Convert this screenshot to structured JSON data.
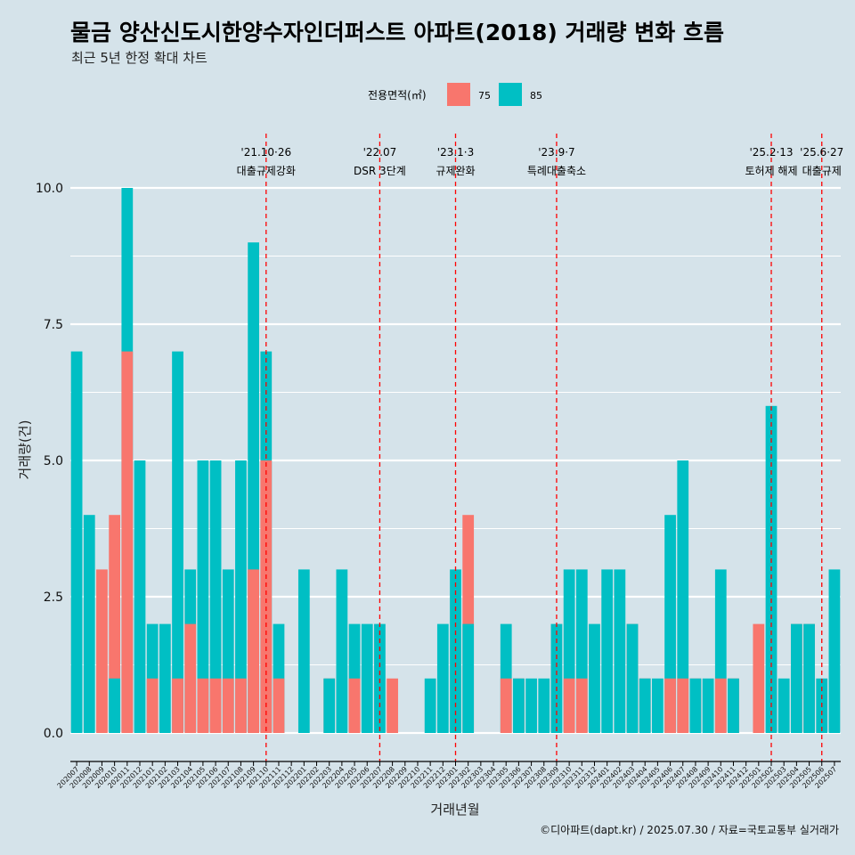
{
  "chart_data": {
    "type": "bar",
    "stacked": false,
    "title": "물금 양산신도시한양수자인더퍼스트 아파트(2018) 거래량 변화 흐름",
    "subtitle": "최근 5년 한정 확대 차트",
    "xlabel": "거래년월",
    "ylabel": "거래량(건)",
    "ylim": [
      0,
      10.5
    ],
    "yticks": [
      0,
      2.5,
      5,
      7.5,
      10
    ],
    "ytick_labels": [
      "0.0",
      "2.5",
      "5.0",
      "7.5",
      "10.0"
    ],
    "legend": {
      "title": "전용면적(㎡)",
      "position": "top",
      "items": [
        {
          "label": "75",
          "color": "#f8766d"
        },
        {
          "label": "85",
          "color": "#00bfc4"
        }
      ]
    },
    "categories": [
      "202007",
      "202008",
      "202009",
      "202010",
      "202011",
      "202012",
      "202101",
      "202102",
      "202103",
      "202104",
      "202105",
      "202106",
      "202107",
      "202108",
      "202109",
      "202110",
      "202111",
      "202112",
      "202201",
      "202202",
      "202203",
      "202204",
      "202205",
      "202206",
      "202207",
      "202208",
      "202209",
      "202210",
      "202211",
      "202212",
      "202301",
      "202302",
      "202303",
      "202304",
      "202305",
      "202306",
      "202307",
      "202308",
      "202309",
      "202310",
      "202311",
      "202312",
      "202401",
      "202402",
      "202403",
      "202404",
      "202405",
      "202406",
      "202407",
      "202408",
      "202409",
      "202410",
      "202411",
      "202412",
      "202501",
      "202502",
      "202503",
      "202504",
      "202505",
      "202506",
      "202507"
    ],
    "series": [
      {
        "name": "75",
        "color": "#f8766d",
        "values": [
          0,
          0,
          3,
          4,
          7,
          0,
          1,
          0,
          1,
          2,
          1,
          1,
          1,
          1,
          3,
          5,
          1,
          0,
          0,
          0,
          1,
          0,
          1,
          0,
          0,
          1,
          0,
          0,
          0,
          0,
          0,
          4,
          0,
          0,
          1,
          1,
          0,
          0,
          0,
          1,
          1,
          0,
          0,
          0,
          2,
          1,
          0,
          1,
          1,
          1,
          0,
          1,
          1,
          0,
          2,
          0,
          0,
          2,
          2,
          0,
          0
        ]
      },
      {
        "name": "85",
        "color": "#00bfc4",
        "values": [
          7,
          4,
          0,
          1,
          10,
          5,
          2,
          2,
          7,
          3,
          5,
          5,
          3,
          5,
          9,
          7,
          2,
          0,
          3,
          0,
          1,
          3,
          2,
          2,
          2,
          0,
          0,
          0,
          1,
          2,
          3,
          2,
          0,
          0,
          2,
          1,
          1,
          1,
          2,
          3,
          3,
          2,
          3,
          3,
          2,
          1,
          1,
          4,
          5,
          1,
          1,
          3,
          1,
          0,
          0,
          6,
          1,
          2,
          2,
          1,
          3
        ]
      }
    ],
    "annotations": [
      {
        "at": "202110",
        "date": "'21.10·26",
        "label": "대출규제강화"
      },
      {
        "at": "202207",
        "date": "'22.07",
        "label": "DSR 3단계"
      },
      {
        "at": "202301",
        "date": "'23.1·3",
        "label": "규제완화"
      },
      {
        "at": "202309",
        "date": "'23.9·7",
        "label": "특례대출축소"
      },
      {
        "at": "202502",
        "date": "'25.2·13",
        "label": "토허제 해제"
      },
      {
        "at": "202506",
        "date": "'25.6·27",
        "label": "대출규제"
      }
    ],
    "caption": "©디아파트(dapt.kr) / 2025.07.30 / 자료=국토교통부 실거래가"
  }
}
